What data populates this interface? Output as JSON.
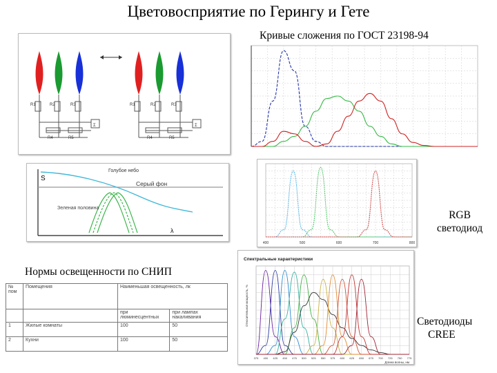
{
  "title": "Цветовосприятие по Герингу и Гете",
  "labels": {
    "gost": "Кривые сложения по ГОСТ 23198-94",
    "rgb_line1": "RGB",
    "rgb_line2": "светодиод",
    "snip": "Нормы освещенности по СНИП",
    "cree_line1": "Светодиоды",
    "cree_line2": "CREE"
  },
  "perception_panel": {
    "s_axis": "S",
    "lambda_axis": "λ",
    "blue_sky": "Голубое небо",
    "gray_bg": "Серый фон",
    "green_leaves": "Зеленая половина"
  },
  "circuit_panel": {
    "resistors": [
      "R1",
      "R2",
      "R3",
      "R4",
      "R5"
    ],
    "sum": "Σ",
    "lamp_colors": [
      "#e02020",
      "#1a9a30",
      "#1730d8"
    ]
  },
  "snip_table": {
    "headers": [
      "№ пом",
      "Помещения",
      "Наименьшая освещенность, лк"
    ],
    "subheaders": [
      "",
      "",
      "при люминесцентных",
      "при лампах накаливания"
    ],
    "rows": [
      [
        "1",
        "Жилые комнаты",
        "100",
        "50"
      ],
      [
        "2",
        "Кухни",
        "100",
        "50"
      ]
    ]
  },
  "cree_chart_title": "Спектральные характеристики",
  "cree_chart_ylabel": "Относительная мощность, %",
  "cree_chart_xlabel": "Длина волны, нм",
  "chart_data": [
    {
      "type": "line",
      "title": "Кривые сложения по ГОСТ 23198-94",
      "x": [
        380,
        400,
        420,
        440,
        460,
        480,
        500,
        520,
        540,
        560,
        580,
        600,
        620,
        640,
        660,
        680,
        700,
        720,
        740,
        760,
        780,
        800
      ],
      "xlim": [
        380,
        800
      ],
      "series": [
        {
          "values": [
            0.0,
            0.1,
            0.9,
            1.9,
            1.5,
            0.4,
            0.1,
            0.0,
            0.0,
            0.0,
            0.0,
            0.0,
            0.0,
            0.0,
            0.0,
            0.0,
            0.0,
            0.0,
            0.0,
            0.0,
            0.0,
            0.0
          ]
        },
        {
          "values": [
            0.0,
            0.0,
            0.0,
            0.1,
            0.2,
            0.4,
            0.7,
            0.95,
            1.0,
            0.9,
            0.7,
            0.4,
            0.2,
            0.05,
            0.0,
            0.0,
            0.0,
            0.0,
            0.0,
            0.0,
            0.0,
            0.0
          ]
        },
        {
          "values": [
            0.0,
            0.0,
            0.1,
            0.3,
            0.25,
            0.1,
            0.0,
            0.05,
            0.3,
            0.6,
            0.9,
            1.05,
            0.9,
            0.55,
            0.25,
            0.08,
            0.02,
            0.0,
            0.0,
            0.0,
            0.0,
            0.0
          ]
        }
      ]
    },
    {
      "type": "line",
      "x_ticks": [
        "400",
        "500",
        "600",
        "700",
        "800"
      ],
      "xlim": [
        400,
        800
      ],
      "series": [
        {
          "values": [
            0,
            0,
            0.1,
            0.9,
            0.1,
            0,
            0,
            0,
            0,
            0,
            0,
            0,
            0,
            0,
            0,
            0,
            0
          ]
        },
        {
          "values": [
            0,
            0,
            0,
            0,
            0,
            0.1,
            0.95,
            0.1,
            0,
            0,
            0,
            0,
            0,
            0,
            0,
            0,
            0
          ]
        },
        {
          "values": [
            0,
            0,
            0,
            0,
            0,
            0,
            0,
            0,
            0,
            0,
            0,
            0.1,
            0.9,
            0.1,
            0,
            0,
            0
          ]
        }
      ]
    },
    {
      "type": "line",
      "title": "Спектральные характеристики",
      "x": [
        375,
        400,
        425,
        450,
        475,
        500,
        525,
        550,
        575,
        600,
        625,
        650,
        675,
        700,
        725,
        750,
        775
      ],
      "ylim": [
        0,
        100
      ],
      "series": [
        {
          "values": [
            0,
            95,
            20,
            0,
            0,
            0,
            0,
            0,
            0,
            0,
            0,
            0,
            0,
            0,
            0,
            0,
            0
          ]
        },
        {
          "values": [
            0,
            10,
            95,
            10,
            0,
            0,
            0,
            0,
            0,
            0,
            0,
            0,
            0,
            0,
            0,
            0,
            0
          ]
        },
        {
          "values": [
            0,
            0,
            10,
            95,
            20,
            0,
            0,
            0,
            0,
            0,
            0,
            0,
            0,
            0,
            0,
            0,
            0
          ]
        },
        {
          "values": [
            0,
            0,
            0,
            40,
            93,
            30,
            0,
            0,
            0,
            0,
            0,
            0,
            0,
            0,
            0,
            0,
            0
          ]
        },
        {
          "values": [
            0,
            0,
            0,
            0,
            30,
            90,
            40,
            0,
            0,
            0,
            0,
            0,
            0,
            0,
            0,
            0,
            0
          ]
        },
        {
          "values": [
            0,
            0,
            0,
            3,
            25,
            55,
            70,
            62,
            45,
            30,
            18,
            10,
            5,
            2,
            0,
            0,
            0
          ]
        },
        {
          "values": [
            0,
            0,
            0,
            0,
            0,
            0,
            10,
            85,
            30,
            0,
            0,
            0,
            0,
            0,
            0,
            0,
            0
          ]
        },
        {
          "values": [
            0,
            0,
            0,
            0,
            0,
            0,
            0,
            10,
            90,
            20,
            0,
            0,
            0,
            0,
            0,
            0,
            0
          ]
        },
        {
          "values": [
            0,
            0,
            0,
            0,
            0,
            0,
            0,
            0,
            10,
            85,
            20,
            0,
            0,
            0,
            0,
            0,
            0
          ]
        },
        {
          "values": [
            0,
            0,
            0,
            0,
            0,
            0,
            0,
            0,
            0,
            20,
            90,
            20,
            0,
            0,
            0,
            0,
            0
          ]
        },
        {
          "values": [
            0,
            0,
            0,
            0,
            0,
            0,
            0,
            0,
            0,
            0,
            10,
            85,
            20,
            0,
            0,
            0,
            0
          ]
        }
      ]
    }
  ]
}
